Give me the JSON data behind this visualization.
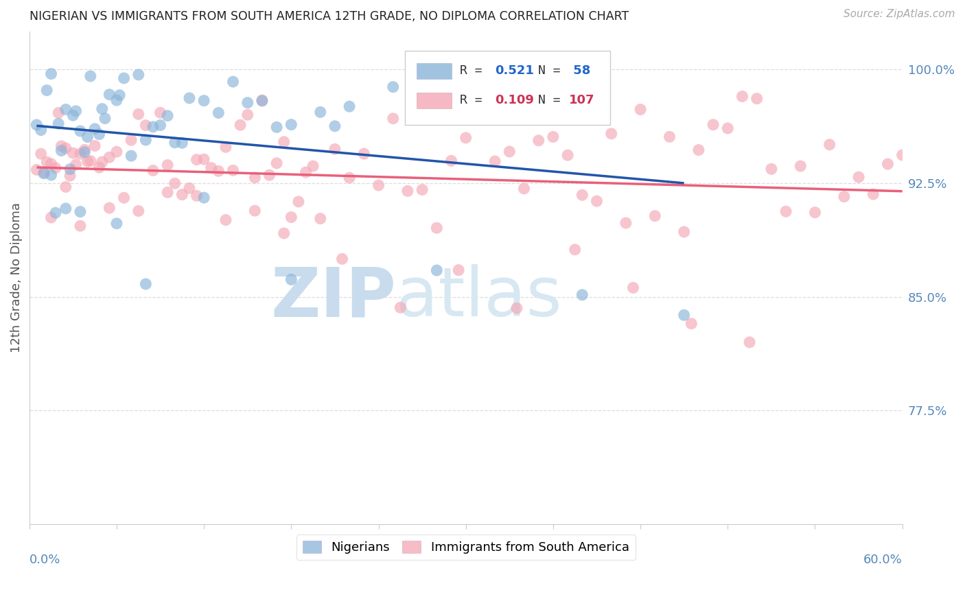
{
  "title": "NIGERIAN VS IMMIGRANTS FROM SOUTH AMERICA 12TH GRADE, NO DIPLOMA CORRELATION CHART",
  "source": "Source: ZipAtlas.com",
  "ylabel": "12th Grade, No Diploma",
  "ytick_labels": [
    "100.0%",
    "92.5%",
    "85.0%",
    "77.5%"
  ],
  "ytick_values": [
    1.0,
    0.925,
    0.85,
    0.775
  ],
  "xlim": [
    0.0,
    0.6
  ],
  "ylim": [
    0.7,
    1.025
  ],
  "legend_r_blue": "R = 0.521",
  "legend_n_blue": "N =  58",
  "legend_r_pink": "R = 0.109",
  "legend_n_pink": "N = 107",
  "blue_color": "#89B4D9",
  "pink_color": "#F4A7B5",
  "blue_line_color": "#2255AA",
  "pink_line_color": "#E8607A",
  "watermark_zip": "ZIP",
  "watermark_atlas": "atlas",
  "watermark_color": "#D5E6F3",
  "nigerian_label": "Nigerians",
  "immigrant_label": "Immigrants from South America",
  "blue_r_color": "#2255AA",
  "pink_r_color": "#CC3355",
  "blue_n_color": "#2288DD",
  "pink_n_color": "#CC3355"
}
